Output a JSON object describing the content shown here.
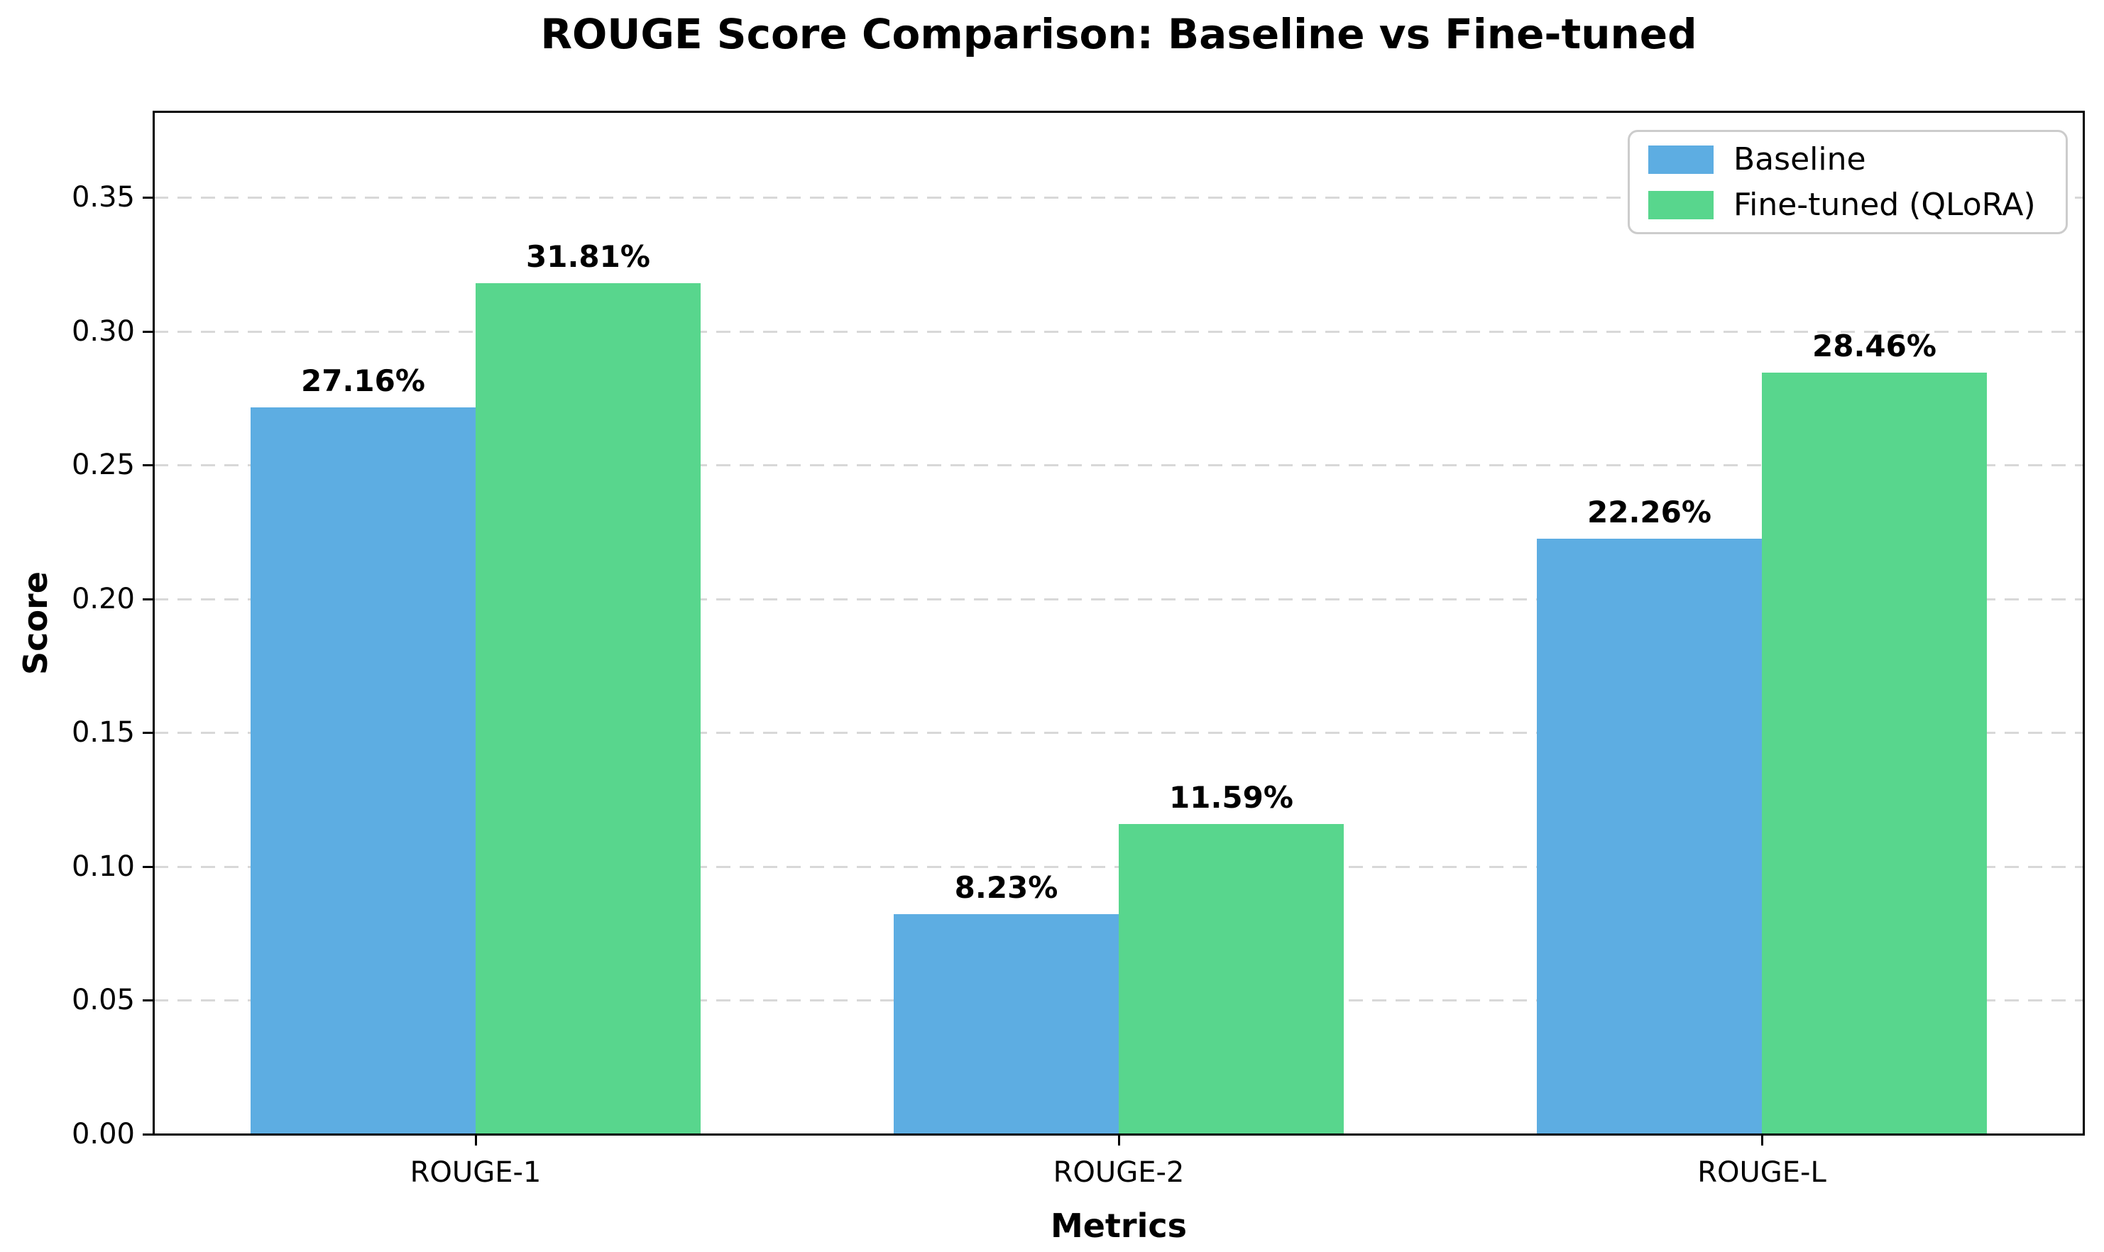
{
  "chart_data": {
    "type": "bar",
    "title": "ROUGE Score Comparison: Baseline vs Fine-tuned",
    "xlabel": "Metrics",
    "ylabel": "Score",
    "categories": [
      "ROUGE-1",
      "ROUGE-2",
      "ROUGE-L"
    ],
    "series": [
      {
        "name": "Baseline",
        "color": "#5dade2",
        "values": [
          0.2716,
          0.0823,
          0.2226
        ],
        "labels": [
          "27.16%",
          "8.23%",
          "22.26%"
        ]
      },
      {
        "name": "Fine-tuned (QLoRA)",
        "color": "#58d68d",
        "values": [
          0.3181,
          0.1159,
          0.2846
        ],
        "labels": [
          "31.81%",
          "11.59%",
          "28.46%"
        ]
      }
    ],
    "ylim": [
      0,
      0.3819
    ],
    "yticks": [
      0.0,
      0.05,
      0.1,
      0.15,
      0.2,
      0.25,
      0.3,
      0.35
    ],
    "ytick_labels": [
      "0.00",
      "0.05",
      "0.10",
      "0.15",
      "0.20",
      "0.25",
      "0.30",
      "0.35"
    ],
    "grid": "horizontal dashed",
    "legend_position": "upper right"
  }
}
